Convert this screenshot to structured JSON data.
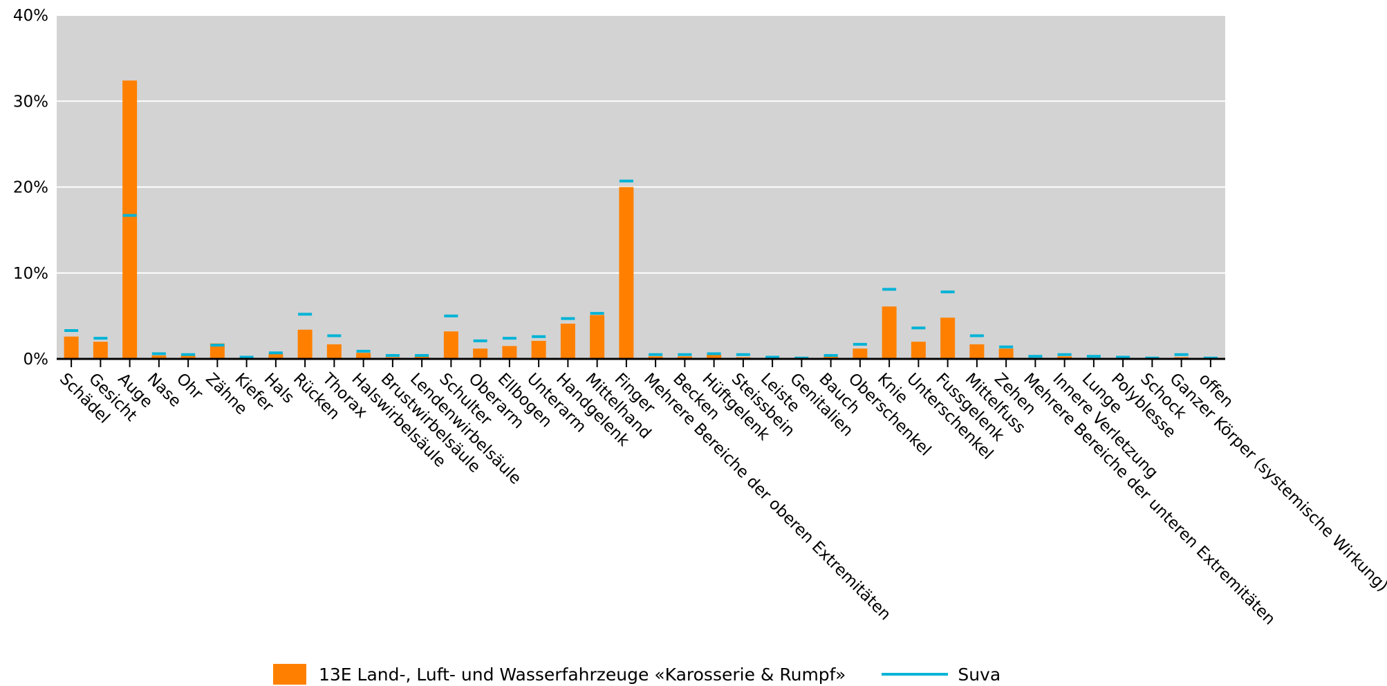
{
  "chart_data": {
    "type": "bar",
    "title": "",
    "xlabel": "",
    "ylabel": "",
    "ylim": [
      0,
      40
    ],
    "yticks": [
      "0%",
      "10%",
      "20%",
      "30%",
      "40%"
    ],
    "grid": true,
    "legend_position": "bottom-center",
    "categories": [
      "Schädel",
      "Gesicht",
      "Auge",
      "Nase",
      "Ohr",
      "Zähne",
      "Kiefer",
      "Hals",
      "Rücken",
      "Thorax",
      "Halswirbelsäule",
      "Brustwirbelsäule",
      "Lendenwirbelsäule",
      "Schulter",
      "Oberarm",
      "Ellbogen",
      "Unterarm",
      "Handgelenk",
      "Mittelhand",
      "Finger",
      "Mehrere Bereiche der oberen Extremitäten",
      "Becken",
      "Hüftgelenk",
      "Steissbein",
      "Leiste",
      "Genitalien",
      "Bauch",
      "Oberschenkel",
      "Knie",
      "Unterschenkel",
      "Fussgelenk",
      "Mittelfuss",
      "Zehen",
      "Mehrere Bereiche der unteren Extremitäten",
      "Innere Verletzung",
      "Lunge",
      "Polyblesse",
      "Schock",
      "Ganzer Körper (systemische Wirkung)",
      "offen"
    ],
    "series": [
      {
        "name": "13E Land-, Luft- und Wasserfahrzeuge «Karosserie & Rumpf»",
        "kind": "bar",
        "color": "#ff8000",
        "values": [
          2.6,
          2.0,
          32.4,
          0.4,
          0.4,
          1.8,
          0.0,
          0.6,
          3.4,
          1.7,
          0.7,
          0.2,
          0.3,
          3.2,
          1.2,
          1.5,
          2.1,
          4.1,
          5.1,
          20.0,
          0.3,
          0.3,
          0.5,
          0.2,
          0.1,
          0.0,
          0.3,
          1.2,
          6.1,
          2.0,
          4.8,
          1.7,
          1.2,
          0.1,
          0.3,
          0.1,
          0.1,
          0.0,
          0.2,
          0.0
        ]
      },
      {
        "name": "Suva",
        "kind": "marker",
        "color": "#00b3d6",
        "values": [
          3.3,
          2.4,
          16.7,
          0.6,
          0.5,
          1.6,
          0.2,
          0.7,
          5.2,
          2.7,
          0.9,
          0.4,
          0.4,
          5.0,
          2.1,
          2.4,
          2.6,
          4.7,
          5.3,
          20.7,
          0.5,
          0.5,
          0.6,
          0.5,
          0.2,
          0.1,
          0.4,
          1.7,
          8.1,
          3.6,
          7.8,
          2.7,
          1.4,
          0.3,
          0.5,
          0.3,
          0.2,
          0.1,
          0.5,
          0.1
        ]
      }
    ]
  }
}
